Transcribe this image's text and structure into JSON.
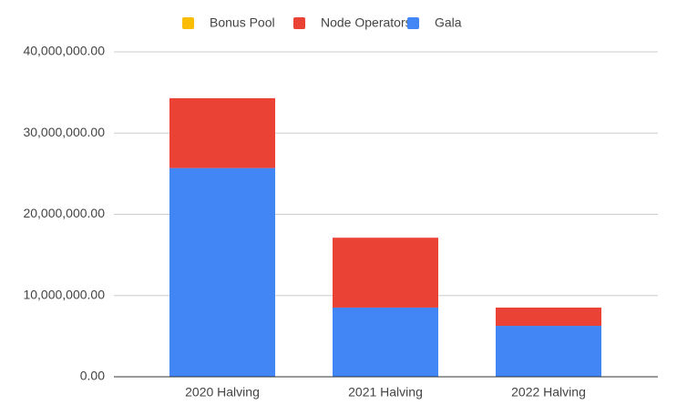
{
  "chart_data": {
    "type": "stacked-bar",
    "categories": [
      "2020 Halving",
      "2021 Halving",
      "2022 Halving"
    ],
    "series": [
      {
        "name": "Bonus Pool",
        "color": "#fbbc04",
        "values": [
          0,
          0,
          0
        ]
      },
      {
        "name": "Node Operators",
        "color": "#ea4335",
        "values": [
          8600000,
          8600000,
          2250000
        ]
      },
      {
        "name": "Gala",
        "color": "#4285f4",
        "values": [
          25700000,
          8520000,
          6270000
        ]
      }
    ],
    "ylim": [
      0,
      40000000
    ],
    "yticks": [
      {
        "value": 0,
        "label": "0.00"
      },
      {
        "value": 10000000,
        "label": "10,000,000.00"
      },
      {
        "value": 20000000,
        "label": "20,000,000.00"
      },
      {
        "value": 30000000,
        "label": "30,000,000.00"
      },
      {
        "value": 40000000,
        "label": "40,000,000.00"
      }
    ],
    "grid": true,
    "legend": "top"
  }
}
